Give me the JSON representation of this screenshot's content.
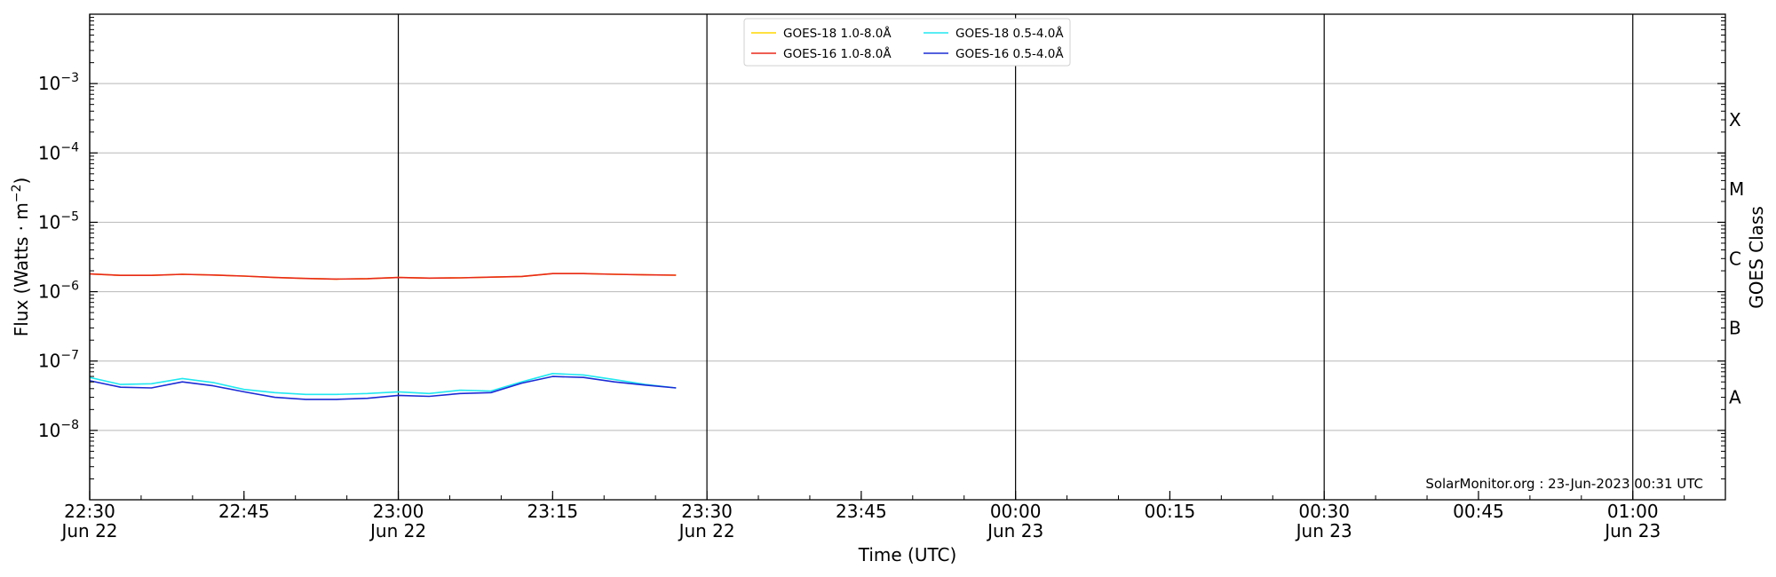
{
  "chart_data": {
    "type": "line",
    "title": "",
    "xlabel": "Time (UTC)",
    "ylabel": "Flux (Watts · m⁻²)",
    "ylabel_right": "GOES Class",
    "yscale": "log",
    "ylim": [
      1e-09,
      0.01
    ],
    "xlim": [
      "2023-06-22 22:30",
      "2023-06-23 01:09"
    ],
    "y_ticks": [
      {
        "value": 1e-08,
        "base": "10",
        "exp": "−8"
      },
      {
        "value": 1e-07,
        "base": "10",
        "exp": "−7"
      },
      {
        "value": 1e-06,
        "base": "10",
        "exp": "−6"
      },
      {
        "value": 1e-05,
        "base": "10",
        "exp": "−5"
      },
      {
        "value": 0.0001,
        "base": "10",
        "exp": "−4"
      },
      {
        "value": 0.001,
        "base": "10",
        "exp": "−3"
      }
    ],
    "x_ticks": [
      {
        "time": "2023-06-22 22:30",
        "label": "22:30",
        "sublabel": "Jun 22",
        "major": true
      },
      {
        "time": "2023-06-22 22:45",
        "label": "22:45",
        "sublabel": "",
        "major": false
      },
      {
        "time": "2023-06-22 23:00",
        "label": "23:00",
        "sublabel": "Jun 22",
        "major": true
      },
      {
        "time": "2023-06-22 23:15",
        "label": "23:15",
        "sublabel": "",
        "major": false
      },
      {
        "time": "2023-06-22 23:30",
        "label": "23:30",
        "sublabel": "Jun 22",
        "major": true
      },
      {
        "time": "2023-06-22 23:45",
        "label": "23:45",
        "sublabel": "",
        "major": false
      },
      {
        "time": "2023-06-23 00:00",
        "label": "00:00",
        "sublabel": "Jun 23",
        "major": true
      },
      {
        "time": "2023-06-23 00:15",
        "label": "00:15",
        "sublabel": "",
        "major": false
      },
      {
        "time": "2023-06-23 00:30",
        "label": "00:30",
        "sublabel": "Jun 23",
        "major": true
      },
      {
        "time": "2023-06-23 00:45",
        "label": "00:45",
        "sublabel": "",
        "major": false
      },
      {
        "time": "2023-06-23 01:00",
        "label": "01:00",
        "sublabel": "Jun 23",
        "major": true
      }
    ],
    "goes_classes": [
      {
        "label": "A",
        "value": 3e-08
      },
      {
        "label": "B",
        "value": 3e-07
      },
      {
        "label": "C",
        "value": 3e-06
      },
      {
        "label": "M",
        "value": 3e-05
      },
      {
        "label": "X",
        "value": 0.0003
      }
    ],
    "grid": "horizontal at decades; vertical lines at half-hour marks",
    "legend": {
      "location": "top-center",
      "columns": 2
    },
    "credit": "SolarMonitor.org : 23-Jun-2023 00:31 UTC",
    "series": [
      {
        "name": "GOES-18 1.0-8.0Å",
        "color": "#ffd700",
        "x": [
          "2023-06-22 22:30",
          "2023-06-22 22:33",
          "2023-06-22 22:36",
          "2023-06-22 22:39",
          "2023-06-22 22:42",
          "2023-06-22 22:45",
          "2023-06-22 22:48",
          "2023-06-22 22:51",
          "2023-06-22 22:54",
          "2023-06-22 22:57",
          "2023-06-22 23:00",
          "2023-06-22 23:03",
          "2023-06-22 23:06",
          "2023-06-22 23:09",
          "2023-06-22 23:12",
          "2023-06-22 23:15",
          "2023-06-22 23:18",
          "2023-06-22 23:21",
          "2023-06-22 23:24",
          "2023-06-22 23:27"
        ],
        "y": [
          1.8e-06,
          1.72e-06,
          1.72e-06,
          1.78e-06,
          1.74e-06,
          1.68e-06,
          1.6e-06,
          1.55e-06,
          1.52e-06,
          1.54e-06,
          1.6e-06,
          1.57e-06,
          1.58e-06,
          1.62e-06,
          1.66e-06,
          1.82e-06,
          1.82e-06,
          1.78e-06,
          1.75e-06,
          1.73e-06
        ]
      },
      {
        "name": "GOES-16 1.0-8.0Å",
        "color": "#e8291c",
        "x": [
          "2023-06-22 22:30",
          "2023-06-22 22:33",
          "2023-06-22 22:36",
          "2023-06-22 22:39",
          "2023-06-22 22:42",
          "2023-06-22 22:45",
          "2023-06-22 22:48",
          "2023-06-22 22:51",
          "2023-06-22 22:54",
          "2023-06-22 22:57",
          "2023-06-22 23:00",
          "2023-06-22 23:03",
          "2023-06-22 23:06",
          "2023-06-22 23:09",
          "2023-06-22 23:12",
          "2023-06-22 23:15",
          "2023-06-22 23:18",
          "2023-06-22 23:21",
          "2023-06-22 23:24",
          "2023-06-22 23:27"
        ],
        "y": [
          1.8e-06,
          1.72e-06,
          1.72e-06,
          1.78e-06,
          1.74e-06,
          1.68e-06,
          1.6e-06,
          1.55e-06,
          1.52e-06,
          1.54e-06,
          1.6e-06,
          1.57e-06,
          1.58e-06,
          1.62e-06,
          1.66e-06,
          1.82e-06,
          1.82e-06,
          1.78e-06,
          1.75e-06,
          1.73e-06
        ]
      },
      {
        "name": "GOES-18 0.5-4.0Å",
        "color": "#22e8f0",
        "x": [
          "2023-06-22 22:30",
          "2023-06-22 22:33",
          "2023-06-22 22:36",
          "2023-06-22 22:39",
          "2023-06-22 22:42",
          "2023-06-22 22:45",
          "2023-06-22 22:48",
          "2023-06-22 22:51",
          "2023-06-22 22:54",
          "2023-06-22 22:57",
          "2023-06-22 23:00",
          "2023-06-22 23:03",
          "2023-06-22 23:06",
          "2023-06-22 23:09",
          "2023-06-22 23:12",
          "2023-06-22 23:15",
          "2023-06-22 23:18",
          "2023-06-22 23:21",
          "2023-06-22 23:24",
          "2023-06-22 23:27"
        ],
        "y": [
          5.8e-08,
          4.6e-08,
          4.7e-08,
          5.6e-08,
          4.9e-08,
          3.9e-08,
          3.5e-08,
          3.3e-08,
          3.3e-08,
          3.4e-08,
          3.6e-08,
          3.4e-08,
          3.8e-08,
          3.7e-08,
          5e-08,
          6.6e-08,
          6.3e-08,
          5.4e-08,
          4.6e-08,
          4.1e-08
        ]
      },
      {
        "name": "GOES-16 0.5-4.0Å",
        "color": "#1c2bd4",
        "x": [
          "2023-06-22 22:30",
          "2023-06-22 22:33",
          "2023-06-22 22:36",
          "2023-06-22 22:39",
          "2023-06-22 22:42",
          "2023-06-22 22:45",
          "2023-06-22 22:48",
          "2023-06-22 22:51",
          "2023-06-22 22:54",
          "2023-06-22 22:57",
          "2023-06-22 23:00",
          "2023-06-22 23:03",
          "2023-06-22 23:06",
          "2023-06-22 23:09",
          "2023-06-22 23:12",
          "2023-06-22 23:15",
          "2023-06-22 23:18",
          "2023-06-22 23:21",
          "2023-06-22 23:24",
          "2023-06-22 23:27"
        ],
        "y": [
          5.2e-08,
          4.2e-08,
          4.1e-08,
          5e-08,
          4.4e-08,
          3.6e-08,
          3e-08,
          2.8e-08,
          2.8e-08,
          2.9e-08,
          3.2e-08,
          3.1e-08,
          3.4e-08,
          3.5e-08,
          4.8e-08,
          6e-08,
          5.8e-08,
          5e-08,
          4.5e-08,
          4.1e-08
        ]
      }
    ]
  }
}
